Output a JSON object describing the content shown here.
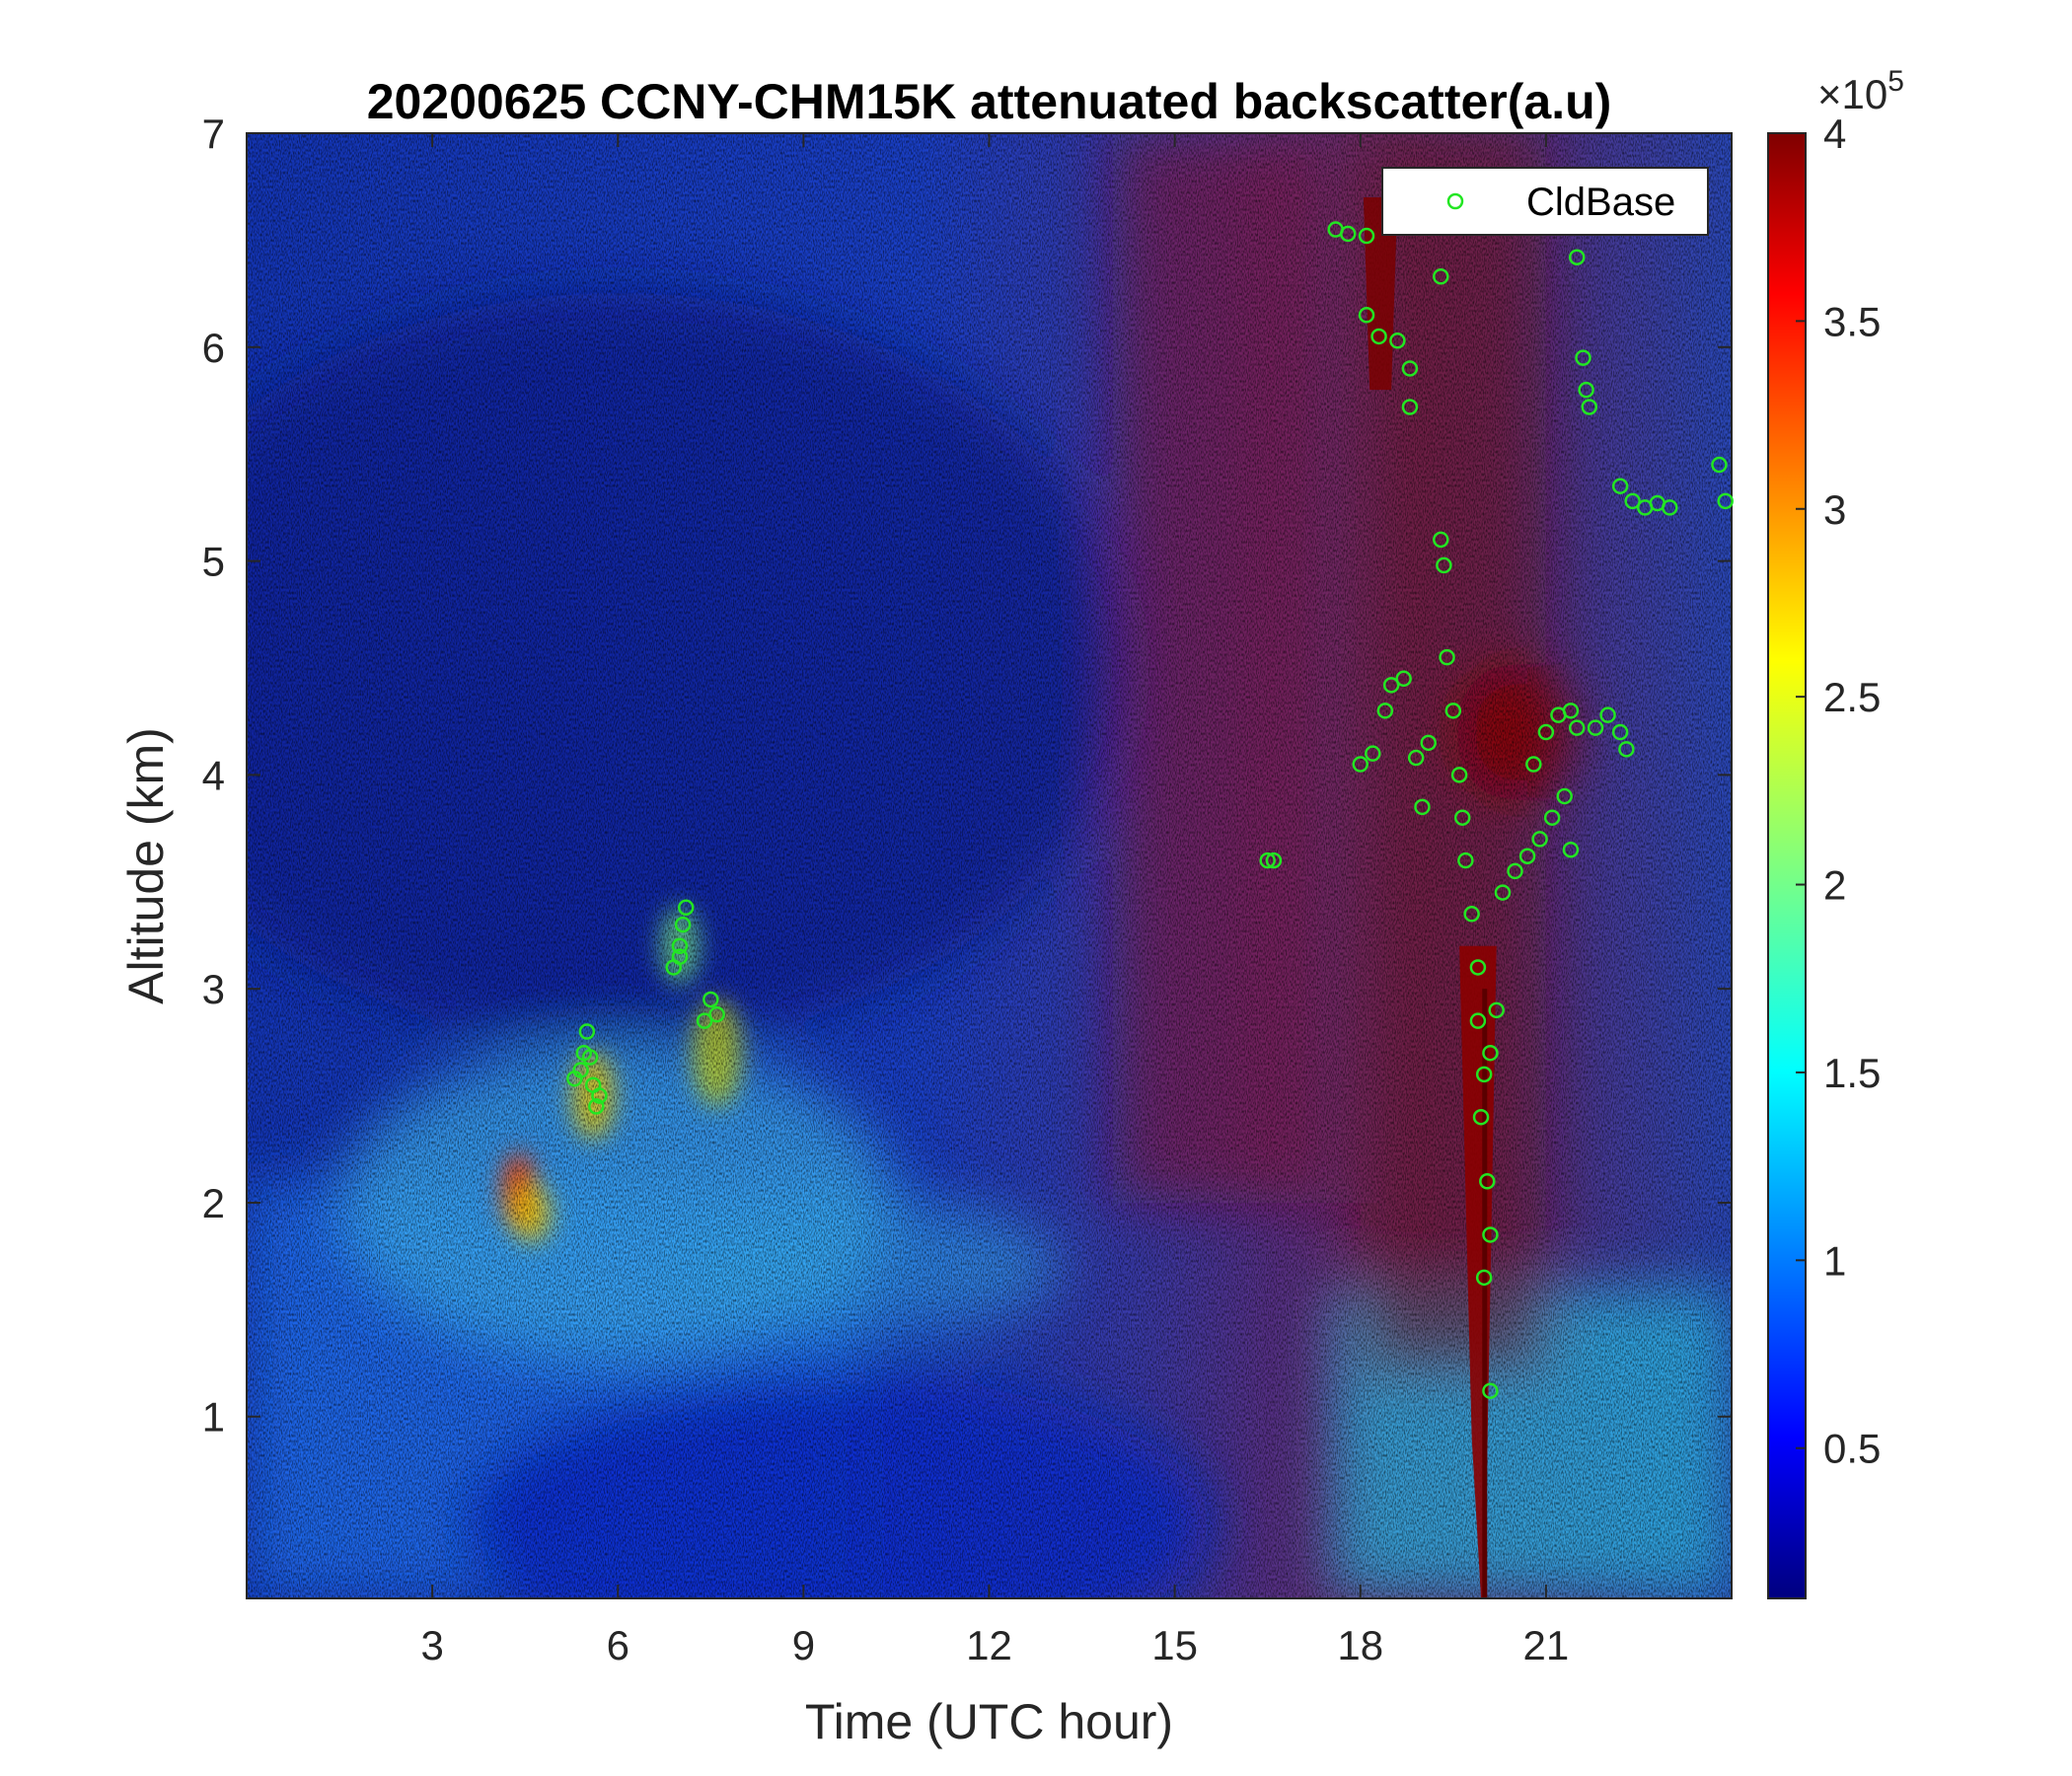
{
  "chart_data": {
    "type": "heatmap",
    "title": "20200625 CCNY-CHM15K attenuated backscatter(a.u)",
    "xlabel": "Time (UTC hour)",
    "ylabel": "Altitude (km)",
    "xlim": [
      0,
      24
    ],
    "ylim": [
      0.15,
      7
    ],
    "xticks": [
      3,
      6,
      9,
      12,
      15,
      18,
      21
    ],
    "yticks": [
      1,
      2,
      3,
      4,
      5,
      6,
      7
    ],
    "colorbar": {
      "colormap": "jet",
      "clim": [
        0.1,
        4
      ],
      "ticks": [
        0.5,
        1,
        1.5,
        2,
        2.5,
        3,
        3.5,
        4
      ],
      "exponent_label": "×10",
      "exponent": "5"
    },
    "colors": {
      "cloud_base_marker": "#22e622",
      "plot_background": "#1a3cd8"
    },
    "legend": {
      "location": "top-right",
      "entries": [
        "CldBase"
      ]
    },
    "series": [
      {
        "name": "CldBase",
        "marker": "circle-open",
        "points": [
          [
            5.3,
            2.58
          ],
          [
            5.4,
            2.62
          ],
          [
            5.45,
            2.7
          ],
          [
            5.5,
            2.8
          ],
          [
            5.55,
            2.68
          ],
          [
            5.6,
            2.55
          ],
          [
            5.65,
            2.45
          ],
          [
            5.7,
            2.5
          ],
          [
            6.9,
            3.1
          ],
          [
            7.0,
            3.2
          ],
          [
            7.05,
            3.3
          ],
          [
            7.1,
            3.38
          ],
          [
            7.0,
            3.15
          ],
          [
            7.4,
            2.85
          ],
          [
            7.5,
            2.95
          ],
          [
            7.6,
            2.88
          ],
          [
            16.5,
            3.6
          ],
          [
            16.6,
            3.6
          ],
          [
            17.6,
            6.55
          ],
          [
            17.8,
            6.53
          ],
          [
            18.1,
            6.52
          ],
          [
            18.1,
            6.15
          ],
          [
            18.3,
            6.05
          ],
          [
            18.6,
            6.03
          ],
          [
            18.8,
            5.9
          ],
          [
            18.8,
            5.72
          ],
          [
            18.0,
            4.05
          ],
          [
            18.2,
            4.1
          ],
          [
            18.4,
            4.3
          ],
          [
            18.5,
            4.42
          ],
          [
            18.7,
            4.45
          ],
          [
            18.9,
            4.08
          ],
          [
            19.0,
            3.85
          ],
          [
            19.1,
            4.15
          ],
          [
            19.3,
            6.33
          ],
          [
            19.3,
            5.1
          ],
          [
            19.35,
            4.98
          ],
          [
            19.4,
            4.55
          ],
          [
            19.5,
            4.3
          ],
          [
            19.6,
            4.0
          ],
          [
            19.65,
            3.8
          ],
          [
            19.7,
            3.6
          ],
          [
            19.8,
            3.35
          ],
          [
            19.9,
            3.1
          ],
          [
            19.9,
            2.85
          ],
          [
            20.0,
            2.6
          ],
          [
            19.95,
            2.4
          ],
          [
            20.1,
            2.7
          ],
          [
            20.2,
            2.9
          ],
          [
            20.05,
            2.1
          ],
          [
            20.1,
            1.85
          ],
          [
            20.0,
            1.65
          ],
          [
            20.1,
            1.12
          ],
          [
            20.3,
            3.45
          ],
          [
            20.5,
            3.55
          ],
          [
            20.7,
            3.62
          ],
          [
            20.9,
            3.7
          ],
          [
            21.1,
            3.8
          ],
          [
            21.3,
            3.9
          ],
          [
            21.4,
            3.65
          ],
          [
            20.8,
            4.05
          ],
          [
            21.0,
            4.2
          ],
          [
            21.2,
            4.28
          ],
          [
            21.4,
            4.3
          ],
          [
            21.5,
            4.22
          ],
          [
            21.5,
            6.42
          ],
          [
            21.6,
            5.95
          ],
          [
            21.65,
            5.8
          ],
          [
            21.7,
            5.72
          ],
          [
            21.8,
            4.22
          ],
          [
            22.0,
            4.28
          ],
          [
            22.2,
            4.2
          ],
          [
            22.3,
            4.12
          ],
          [
            22.2,
            5.35
          ],
          [
            22.4,
            5.28
          ],
          [
            22.6,
            5.25
          ],
          [
            22.8,
            5.27
          ],
          [
            23.0,
            5.25
          ],
          [
            23.8,
            5.45
          ],
          [
            23.9,
            5.28
          ]
        ]
      }
    ]
  }
}
